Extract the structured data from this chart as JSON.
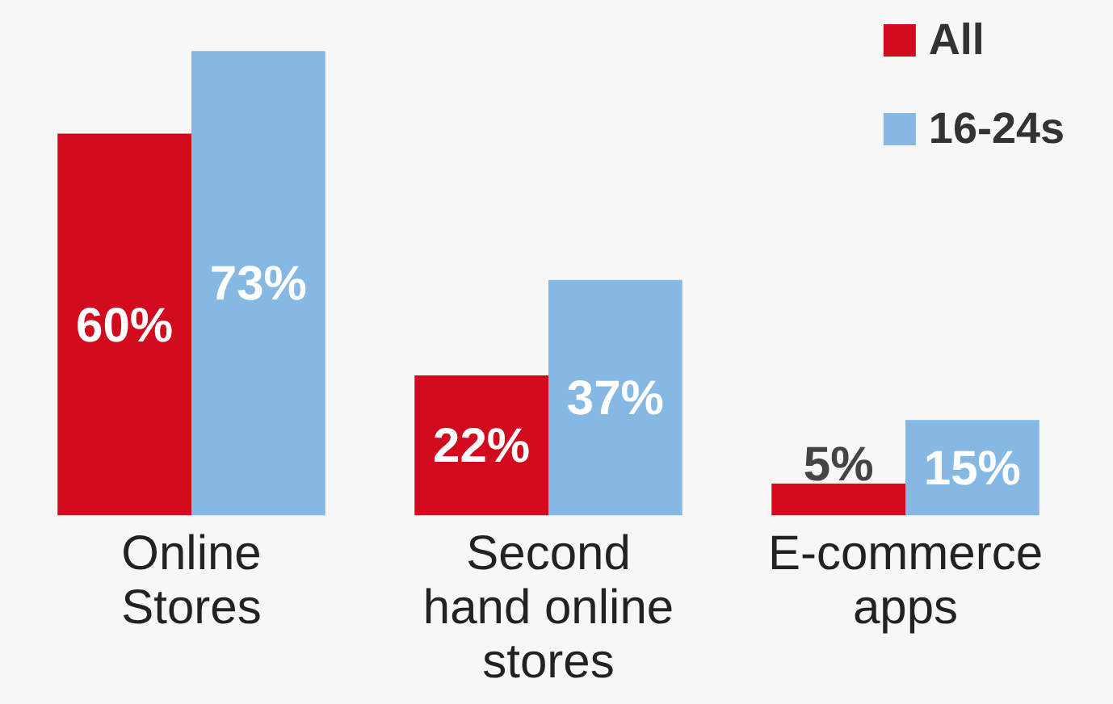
{
  "chart_data": {
    "type": "bar",
    "categories": [
      "Online Stores",
      "Second hand online stores",
      "E-commerce apps"
    ],
    "series": [
      {
        "name": "All",
        "color": "#d20a1e",
        "values": [
          60,
          22,
          5
        ],
        "value_labels": [
          "60%",
          "22%",
          "5%"
        ]
      },
      {
        "name": "16-24s",
        "color": "#85b8e3",
        "values": [
          73,
          37,
          15
        ],
        "value_labels": [
          "73%",
          "37%",
          "15%"
        ]
      }
    ],
    "legend": "top right",
    "grid": false
  }
}
